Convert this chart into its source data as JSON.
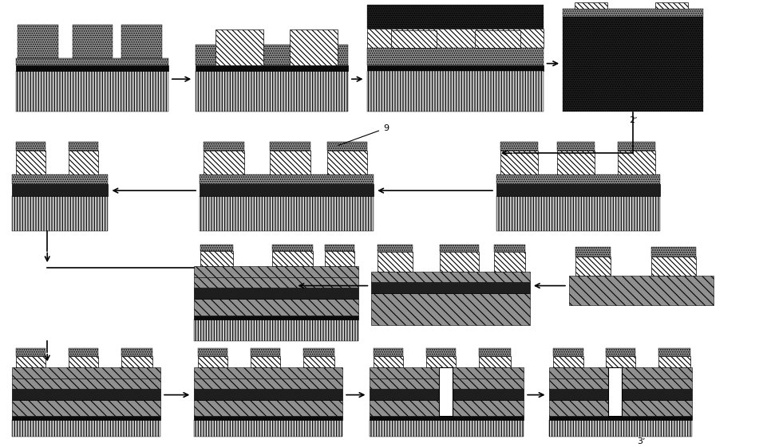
{
  "bg_color": "#ffffff",
  "fig_width": 9.62,
  "fig_height": 5.61,
  "label_2": "2ʼ",
  "label_3": "3ʼ",
  "label_9": "9"
}
